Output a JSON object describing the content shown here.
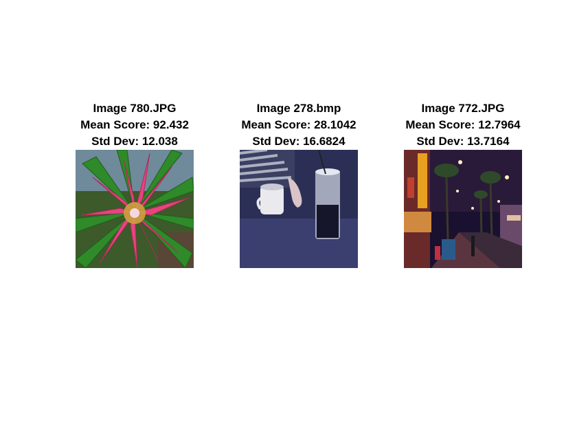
{
  "panels": [
    {
      "title": "Image 780.JPG",
      "mean": "Mean Score: 92.432",
      "std": "Std Dev: 12.038",
      "image_content": "pink bromeliad flower with green leaves"
    },
    {
      "title": "Image 278.bmp",
      "mean": "Mean Score: 28.1042",
      "std": "Std Dev: 16.6824",
      "image_content": "dark tinted photo of a mug and a tall glass on a table"
    },
    {
      "title": "Image 772.JPG",
      "mean": "Mean Score: 12.7964",
      "std": "Std Dev: 13.7164",
      "image_content": "night street with palm trees and neon lights"
    }
  ]
}
